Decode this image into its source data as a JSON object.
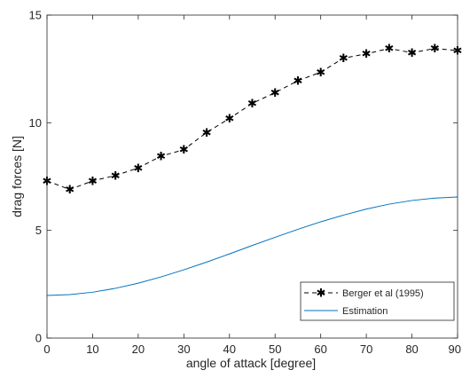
{
  "chart_data": {
    "type": "line",
    "xlabel": "angle of attack [degree]",
    "ylabel": "drag forces [N]",
    "xlim": [
      0,
      90
    ],
    "ylim": [
      0,
      15
    ],
    "x_ticks": [
      "0",
      "10",
      "20",
      "30",
      "40",
      "50",
      "60",
      "70",
      "80",
      "90"
    ],
    "y_ticks": [
      "0",
      "5",
      "10",
      "15"
    ],
    "grid": false,
    "legend_position": "bottom-right",
    "series": [
      {
        "name": "Berger et al (1995)",
        "style": "dashed-star",
        "color": "#000000",
        "x": [
          0,
          5,
          10,
          15,
          20,
          25,
          30,
          35,
          40,
          45,
          50,
          55,
          60,
          65,
          70,
          75,
          80,
          85,
          90
        ],
        "y": [
          7.3,
          6.9,
          7.3,
          7.55,
          7.9,
          8.45,
          8.75,
          9.55,
          10.2,
          10.9,
          11.4,
          11.95,
          12.35,
          13.0,
          13.2,
          13.45,
          13.25,
          13.45,
          13.35
        ]
      },
      {
        "name": "Estimation",
        "style": "solid",
        "color": "#0072BD",
        "x": [
          0,
          5,
          10,
          15,
          20,
          25,
          30,
          35,
          40,
          45,
          50,
          55,
          60,
          65,
          70,
          75,
          80,
          85,
          90
        ],
        "y": [
          1.98,
          2.02,
          2.13,
          2.31,
          2.55,
          2.84,
          3.17,
          3.53,
          3.91,
          4.3,
          4.68,
          5.05,
          5.4,
          5.71,
          5.99,
          6.22,
          6.39,
          6.5,
          6.55
        ]
      }
    ]
  }
}
